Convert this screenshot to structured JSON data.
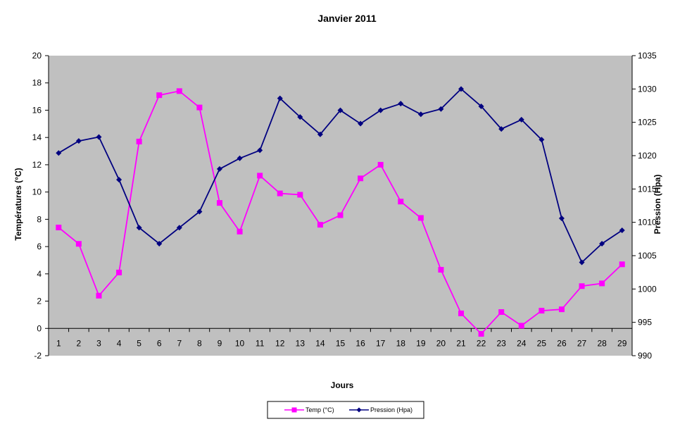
{
  "chart_data": {
    "type": "line",
    "title": "Janvier 2011",
    "xlabel": "Jours",
    "ylabel_left": "Températures  (°C)",
    "ylabel_right": "Pression  (Hpa)",
    "x": [
      1,
      2,
      3,
      4,
      5,
      6,
      7,
      8,
      9,
      10,
      11,
      12,
      13,
      14,
      15,
      16,
      17,
      18,
      19,
      20,
      21,
      22,
      23,
      24,
      25,
      26,
      27,
      28,
      29
    ],
    "y_left_lim": [
      -2,
      20
    ],
    "y_left_ticks": [
      -2,
      0,
      2,
      4,
      6,
      8,
      10,
      12,
      14,
      16,
      18,
      20
    ],
    "y_right_lim": [
      990,
      1035
    ],
    "y_right_ticks": [
      990,
      995,
      1000,
      1005,
      1010,
      1015,
      1020,
      1025,
      1030,
      1035
    ],
    "grid": false,
    "plot_background": "#c0c0c0",
    "legend_position": "bottom",
    "series": [
      {
        "name": "Temp (°C)",
        "axis": "left",
        "color": "#ff00ff",
        "marker": "square",
        "values": [
          7.4,
          6.2,
          2.4,
          4.1,
          13.7,
          17.1,
          17.4,
          16.2,
          9.2,
          7.1,
          11.2,
          9.9,
          9.8,
          7.6,
          8.3,
          11.0,
          12.0,
          9.3,
          8.1,
          4.3,
          1.1,
          -0.4,
          1.2,
          0.2,
          1.3,
          1.4,
          3.1,
          3.3,
          4.7
        ]
      },
      {
        "name": "Pression (Hpa)",
        "axis": "right",
        "color": "#000080",
        "marker": "diamond",
        "values": [
          1020.4,
          1022.2,
          1022.8,
          1016.4,
          1009.2,
          1006.8,
          1009.2,
          1011.6,
          1018.0,
          1019.6,
          1020.8,
          1028.6,
          1025.8,
          1023.2,
          1026.8,
          1024.8,
          1026.8,
          1027.8,
          1026.2,
          1027.0,
          1030.0,
          1027.4,
          1024.0,
          1025.4,
          1022.4,
          1010.6,
          1004.0,
          1006.8,
          1008.8
        ]
      }
    ]
  }
}
